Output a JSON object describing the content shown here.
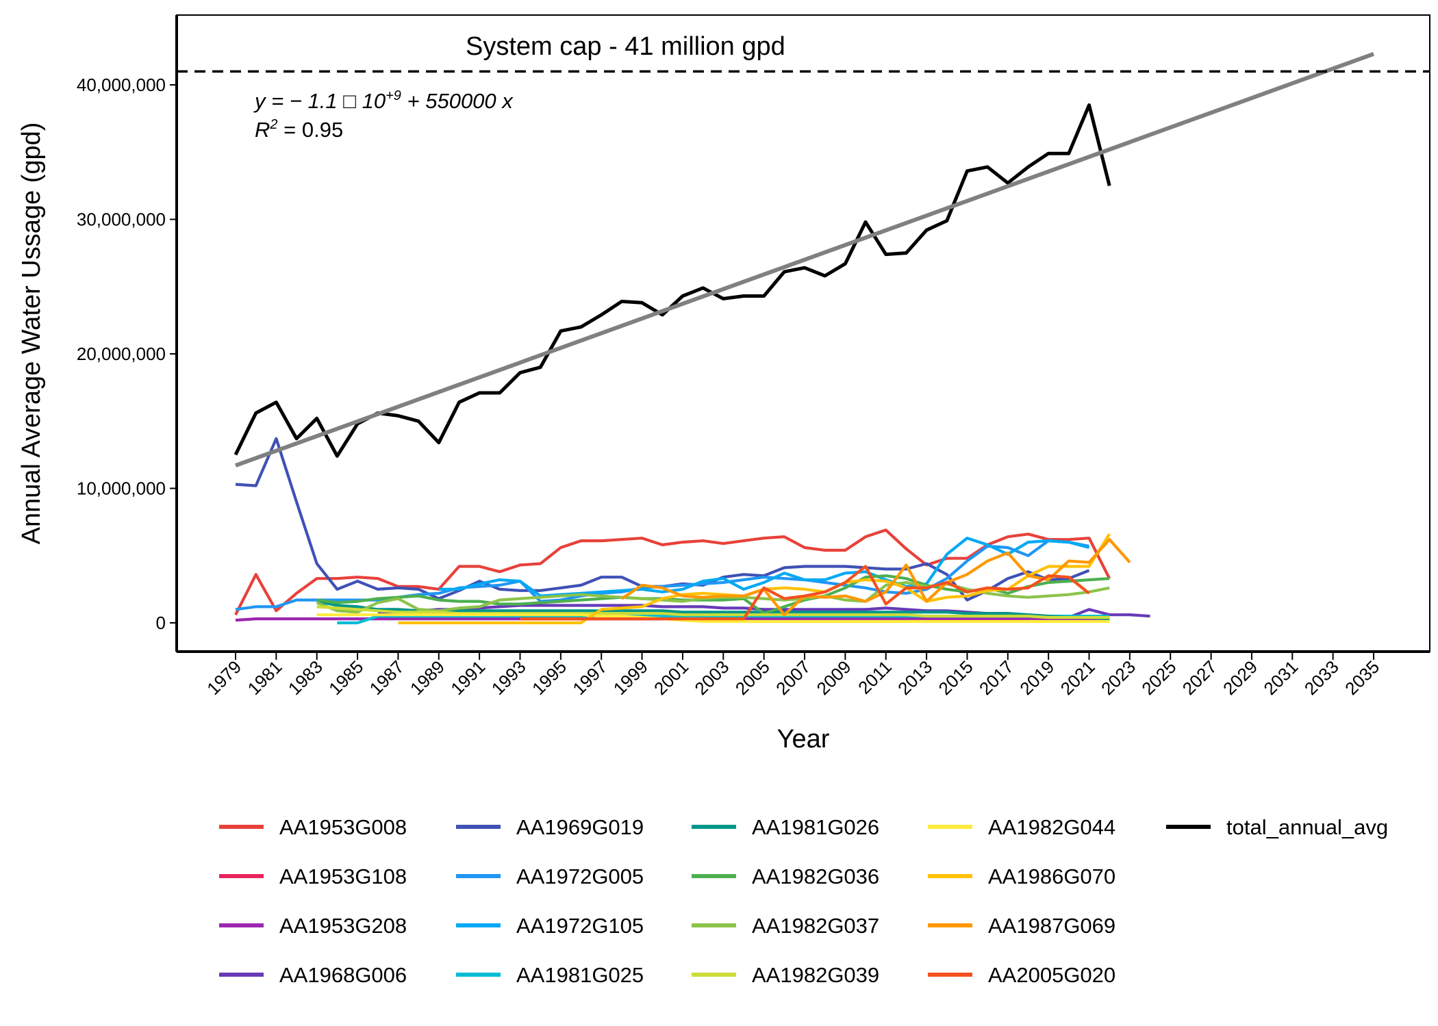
{
  "chart_data": {
    "type": "line",
    "title": "",
    "xlabel": "Year",
    "ylabel": "Annual Average Water Ussage (gpd)",
    "xlim": [
      1979,
      2035
    ],
    "ylim": [
      0,
      44000000
    ],
    "x_ticks": [
      1979,
      1981,
      1983,
      1985,
      1987,
      1989,
      1991,
      1993,
      1995,
      1997,
      1999,
      2001,
      2003,
      2005,
      2007,
      2009,
      2011,
      2013,
      2015,
      2017,
      2019,
      2021,
      2023,
      2025,
      2027,
      2029,
      2031,
      2033,
      2035
    ],
    "x_tick_labels": [
      "1979",
      "1981",
      "1983",
      "1985",
      "1987",
      "1989",
      "1991",
      "1993",
      "1995",
      "1997",
      "1999",
      "2001",
      "2003",
      "2005",
      "2007",
      "2009",
      "2011",
      "2013",
      "2015",
      "2017",
      "2019",
      "2021",
      "2023",
      "2025",
      "2027",
      "2029",
      "2031",
      "2033",
      "2035"
    ],
    "y_ticks": [
      0,
      10000000,
      20000000,
      30000000,
      40000000
    ],
    "y_tick_labels": [
      "0",
      "10,000,000",
      "20,000,000",
      "30,000,000",
      "40,000,000"
    ],
    "grid": false,
    "legend_position": "bottom",
    "reference_line": {
      "y": 41000000,
      "style": "dashed",
      "label": "System cap - 41 million gpd"
    },
    "regression": {
      "label_line1": "y = − 1.1 □ 10",
      "label_line1_sup": "+9",
      "label_line1_tail": " + 550000 x",
      "label_line2": "R",
      "label_line2_sup": "2",
      "label_line2_tail": " = 0.95",
      "x": [
        1979,
        2035
      ],
      "y": [
        11700000,
        42300000
      ],
      "color": "#808080"
    },
    "series": [
      {
        "name": "AA1953G008",
        "color": "#e8413a",
        "start": 1979,
        "values": [
          600000,
          3600000,
          900000,
          2200000,
          3300000,
          3300000,
          3400000,
          3300000,
          2700000,
          2700000,
          2500000,
          4200000,
          4200000,
          3800000,
          4300000,
          4400000,
          5600000,
          6100000,
          6100000,
          6200000,
          6300000,
          5800000,
          6000000,
          6100000,
          5900000,
          6100000,
          6300000,
          6400000,
          5600000,
          5400000,
          5400000,
          6400000,
          6900000,
          5500000,
          4300000,
          4800000,
          4800000,
          5800000,
          6400000,
          6600000,
          6200000,
          6200000,
          6300000,
          3300000
        ]
      },
      {
        "name": "AA1953G108",
        "color": "#e8245f",
        "start": 1983,
        "values": [
          null,
          null,
          null,
          null,
          null,
          null,
          null,
          null,
          null,
          null,
          300000,
          300000,
          300000,
          300000,
          300000,
          300000,
          300000,
          300000,
          300000,
          300000,
          300000,
          300000,
          300000,
          300000,
          300000,
          300000,
          300000,
          300000,
          300000,
          300000,
          300000,
          300000,
          300000,
          300000,
          300000,
          300000,
          300000,
          300000,
          300000,
          300000
        ]
      },
      {
        "name": "AA1953G208",
        "color": "#9c27b0",
        "start": 1979,
        "values": [
          200000,
          300000,
          300000,
          300000,
          300000,
          300000,
          300000,
          300000,
          300000,
          300000,
          300000,
          300000,
          300000,
          300000,
          300000,
          300000,
          300000,
          300000,
          300000,
          300000,
          300000,
          300000,
          300000,
          300000,
          300000,
          300000,
          300000,
          300000,
          300000,
          300000,
          300000,
          300000,
          300000,
          300000,
          300000,
          300000,
          300000,
          300000,
          300000,
          300000,
          300000,
          300000,
          300000,
          300000
        ]
      },
      {
        "name": "AA1968G006",
        "color": "#673ab7",
        "start": 1983,
        "values": [
          null,
          null,
          null,
          700000,
          800000,
          900000,
          1000000,
          1000000,
          1100000,
          1200000,
          1300000,
          1300000,
          1300000,
          1300000,
          1300000,
          1300000,
          1300000,
          1200000,
          1200000,
          1200000,
          1100000,
          1100000,
          1000000,
          1000000,
          1000000,
          1000000,
          1000000,
          1000000,
          1100000,
          1000000,
          900000,
          900000,
          800000,
          700000,
          700000,
          600000,
          500000,
          400000,
          1000000,
          600000,
          600000,
          500000,
          null,
          null
        ]
      },
      {
        "name": "AA1969G019",
        "color": "#3f51b5",
        "start": 1979,
        "values": [
          10300000,
          10200000,
          13700000,
          9000000,
          4400000,
          2500000,
          3100000,
          2500000,
          2600000,
          2500000,
          1800000,
          2400000,
          3100000,
          2500000,
          2400000,
          2400000,
          2600000,
          2800000,
          3400000,
          3400000,
          2700000,
          2700000,
          2900000,
          2800000,
          3400000,
          3600000,
          3500000,
          4100000,
          4200000,
          4200000,
          4200000,
          4100000,
          4000000,
          4000000,
          4400000,
          3600000,
          1700000,
          2400000,
          3300000,
          3800000,
          3200000,
          3300000,
          3900000,
          null
        ]
      },
      {
        "name": "AA1972G005",
        "color": "#2196f3",
        "start": 1979,
        "values": [
          1000000,
          1200000,
          1200000,
          1700000,
          1700000,
          1700000,
          1700000,
          1700000,
          1900000,
          2100000,
          2200000,
          2600000,
          2700000,
          2800000,
          3100000,
          1600000,
          1700000,
          2000000,
          2200000,
          2300000,
          2600000,
          2700000,
          2800000,
          2900000,
          3000000,
          3200000,
          3400000,
          3300000,
          3200000,
          3000000,
          2800000,
          2600000,
          2300000,
          2200000,
          2500000,
          3300000,
          4600000,
          5700000,
          5600000,
          5000000,
          6100000,
          6000000,
          5700000,
          null
        ]
      },
      {
        "name": "AA1972G105",
        "color": "#03a9f4",
        "start": 1979,
        "values": [
          null,
          null,
          null,
          null,
          null,
          null,
          null,
          null,
          null,
          null,
          2500000,
          2500000,
          2900000,
          3200000,
          3100000,
          2000000,
          2100000,
          2200000,
          2300000,
          2400000,
          2500000,
          2300000,
          2500000,
          3100000,
          3300000,
          2500000,
          3000000,
          3700000,
          3200000,
          3200000,
          3700000,
          3800000,
          3200000,
          2700000,
          2900000,
          5100000,
          6300000,
          5800000,
          5100000,
          6000000,
          6100000,
          6000000,
          5600000,
          null
        ]
      },
      {
        "name": "AA1981G025",
        "color": "#00bcd4",
        "start": 1984,
        "values": [
          0,
          0,
          500000,
          500000,
          500000,
          500000,
          500000,
          500000,
          500000,
          500000,
          500000,
          500000,
          500000,
          500000,
          500000,
          500000,
          500000,
          500000,
          500000,
          500000,
          500000,
          500000,
          500000,
          500000,
          500000,
          500000,
          500000,
          500000,
          500000,
          500000,
          500000,
          500000,
          500000,
          500000,
          500000,
          500000,
          500000,
          500000,
          500000
        ]
      },
      {
        "name": "AA1981G026",
        "color": "#009688",
        "start": 1983,
        "values": [
          1600000,
          1300000,
          1200000,
          1000000,
          1000000,
          900000,
          900000,
          900000,
          900000,
          900000,
          900000,
          900000,
          900000,
          900000,
          900000,
          900000,
          900000,
          900000,
          800000,
          800000,
          800000,
          800000,
          800000,
          800000,
          800000,
          800000,
          800000,
          800000,
          800000,
          800000,
          800000,
          800000,
          700000,
          700000,
          700000,
          600000,
          500000,
          400000,
          400000,
          300000
        ]
      },
      {
        "name": "AA1982G036",
        "color": "#4caf50",
        "start": 1983,
        "values": [
          1700000,
          1500000,
          1600000,
          1800000,
          1900000,
          2000000,
          1700000,
          1600000,
          1600000,
          1400000,
          1400000,
          1500000,
          1600000,
          1700000,
          1800000,
          1900000,
          1800000,
          1800000,
          1700000,
          1700000,
          1700000,
          1800000,
          700000,
          1200000,
          1700000,
          2000000,
          2600000,
          3400000,
          3500000,
          3300000,
          2800000,
          2500000,
          2300000,
          2600000,
          2200000,
          2700000,
          3000000,
          3100000,
          3200000,
          3300000
        ]
      },
      {
        "name": "AA1982G037",
        "color": "#8bc34a",
        "start": 1983,
        "values": [
          1500000,
          900000,
          800000,
          1500000,
          1800000,
          1000000,
          900000,
          1100000,
          1200000,
          1700000,
          1800000,
          1900000,
          2000000,
          2100000,
          2000000,
          1900000,
          1800000,
          1700000,
          1600000,
          1800000,
          1900000,
          1900000,
          1800000,
          1700000,
          1800000,
          2000000,
          1700000,
          1600000,
          2800000,
          3000000,
          2700000,
          2900000,
          2500000,
          2200000,
          2000000,
          1900000,
          2000000,
          2100000,
          2300000,
          2600000
        ]
      },
      {
        "name": "AA1982G039",
        "color": "#cddc39",
        "start": 1983,
        "values": [
          1200000,
          1100000,
          1000000,
          900000,
          800000,
          800000,
          800000,
          700000,
          700000,
          700000,
          700000,
          700000,
          700000,
          700000,
          700000,
          700000,
          700000,
          700000,
          600000,
          600000,
          600000,
          600000,
          600000,
          600000,
          600000,
          600000,
          600000,
          600000,
          600000,
          600000,
          500000,
          500000,
          500000,
          500000,
          500000,
          500000,
          400000,
          400000,
          400000,
          400000
        ]
      },
      {
        "name": "AA1982G044",
        "color": "#ffeb3b",
        "start": 1983,
        "values": [
          600000,
          600000,
          600000,
          600000,
          600000,
          600000,
          600000,
          600000,
          600000,
          600000,
          600000,
          600000,
          600000,
          600000,
          500000,
          500000,
          400000,
          300000,
          200000,
          100000,
          100000,
          100000,
          100000,
          100000,
          100000,
          100000,
          100000,
          100000,
          100000,
          100000,
          100000,
          100000,
          100000,
          100000,
          100000,
          100000,
          100000,
          100000,
          100000,
          100000
        ]
      },
      {
        "name": "AA1986G070",
        "color": "#ffc107",
        "start": 1987,
        "values": [
          0,
          0,
          0,
          0,
          0,
          0,
          0,
          0,
          0,
          0,
          1000000,
          1100000,
          1200000,
          1800000,
          2100000,
          2200000,
          2100000,
          2000000,
          2500000,
          2600000,
          2500000,
          2300000,
          3000000,
          3200000,
          3100000,
          2600000,
          1600000,
          1900000,
          2000000,
          2400000,
          2500000,
          3500000,
          4200000,
          4200000,
          4200000,
          6600000
        ]
      },
      {
        "name": "AA1987G069",
        "color": "#ff9800",
        "start": 1992,
        "values": [
          null,
          null,
          null,
          null,
          null,
          null,
          1800000,
          2800000,
          2600000,
          2000000,
          1900000,
          2000000,
          2000000,
          2500000,
          600000,
          2000000,
          1900000,
          2000000,
          1600000,
          2300000,
          4300000,
          1600000,
          3000000,
          3600000,
          4600000,
          5200000,
          3500000,
          3200000,
          4600000,
          4500000,
          6200000,
          4500000
        ]
      },
      {
        "name": "AA2005G020",
        "color": "#f4511e",
        "start": 1993,
        "values": [
          300000,
          300000,
          300000,
          300000,
          300000,
          300000,
          300000,
          300000,
          300000,
          300000,
          300000,
          300000,
          2600000,
          1800000,
          2000000,
          2300000,
          3000000,
          4200000,
          1400000,
          2600000,
          2600000,
          3000000,
          2300000,
          2600000,
          2500000,
          2600000,
          3500000,
          3400000,
          2200000
        ]
      },
      {
        "name": "total_annual_avg",
        "color": "#000000",
        "start": 1979,
        "values": [
          12500000,
          15600000,
          16400000,
          13700000,
          15200000,
          12400000,
          14800000,
          15600000,
          15400000,
          15000000,
          13400000,
          16400000,
          17100000,
          17100000,
          18600000,
          19000000,
          21700000,
          22000000,
          22900000,
          23900000,
          23800000,
          22900000,
          24300000,
          24900000,
          24100000,
          24300000,
          24300000,
          26100000,
          26400000,
          25800000,
          26700000,
          29800000,
          27400000,
          27500000,
          29200000,
          29900000,
          33600000,
          33900000,
          32700000,
          33900000,
          34900000,
          34900000,
          38500000,
          32500000
        ]
      }
    ]
  }
}
